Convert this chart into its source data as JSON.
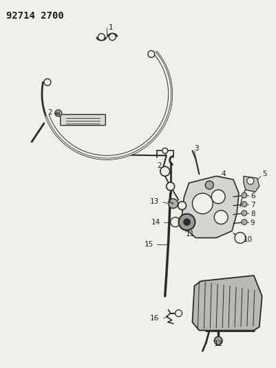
{
  "title": "92714 2700",
  "bg_color": "#f0f0eb",
  "line_color": "#2a2a2a",
  "label_color": "#1a1a1a",
  "fig_width": 4.02,
  "fig_height": 5.33,
  "dpi": 100,
  "title_fontsize": 10,
  "label_fontsize": 7.5
}
